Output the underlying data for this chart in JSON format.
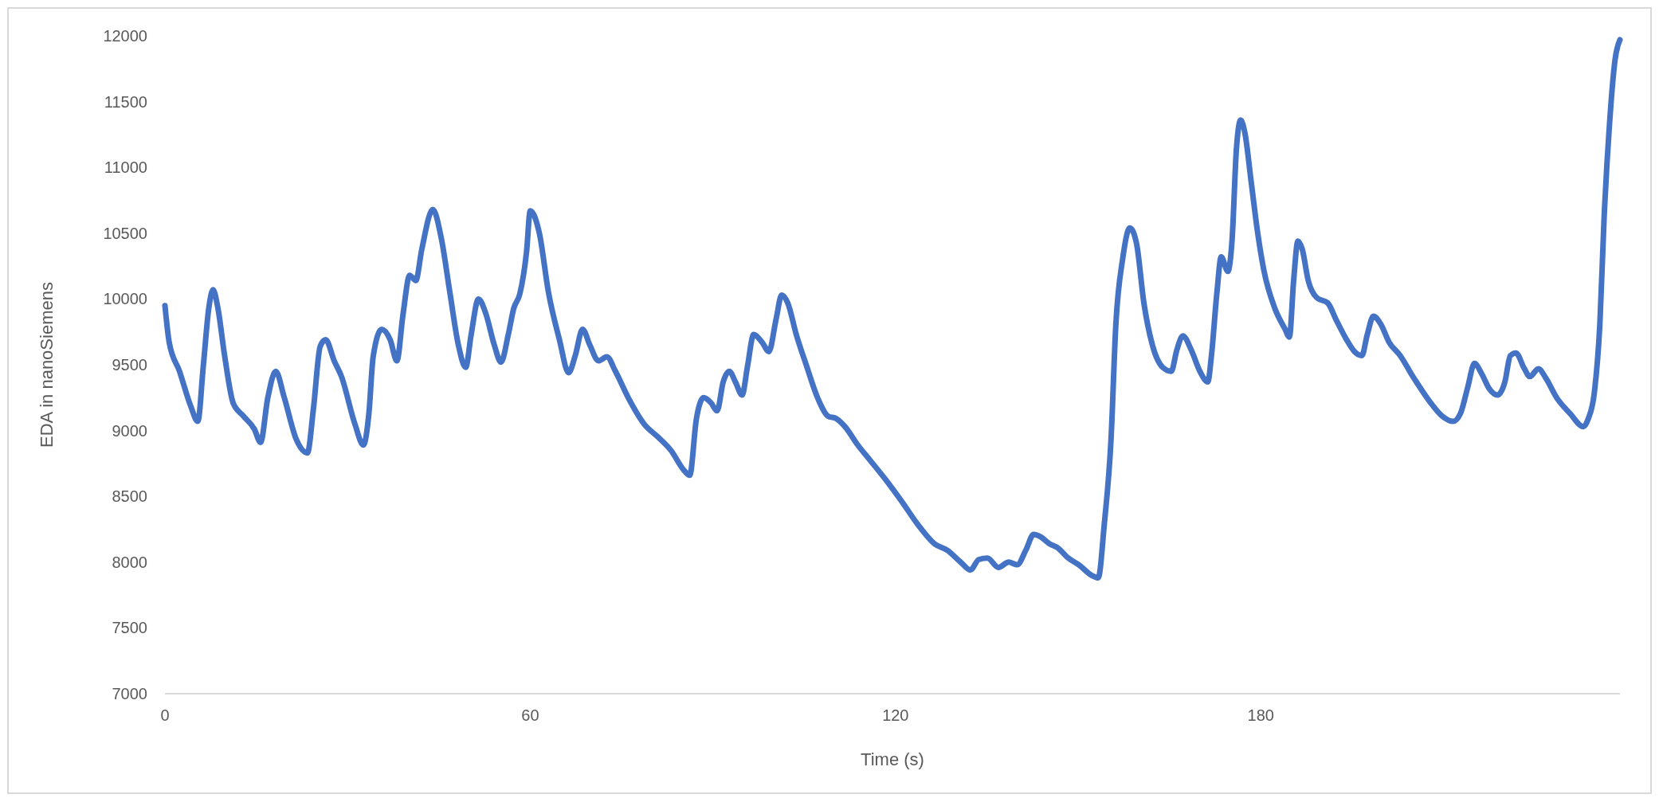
{
  "chart_data": {
    "type": "line",
    "xlabel": "Time (s)",
    "ylabel": "EDA in nanoSiemens",
    "xlim": [
      0,
      239
    ],
    "xticks": [
      0,
      60,
      120,
      180
    ],
    "ylim": [
      7000,
      12000
    ],
    "yticks": [
      7000,
      7500,
      8000,
      8500,
      9000,
      9500,
      10000,
      10500,
      11000,
      11500,
      12000
    ],
    "grid": false,
    "marker": "none",
    "line_style": "solid",
    "series": [
      {
        "color": "#4472c4",
        "x": [
          0,
          0.7,
          2.4,
          4.2,
          5.4,
          6.3,
          7.2,
          7.9,
          8.7,
          9.8,
          11.2,
          12.9,
          14.7,
          15.7,
          16.9,
          18.2,
          19.6,
          21.6,
          23.4,
          24.4,
          25.5,
          26.4,
          27.8,
          29,
          31.2,
          32.6,
          33.5,
          34.2,
          35.6,
          37,
          38.1,
          39.1,
          40.2,
          41.2,
          42.2,
          44,
          45.4,
          46.8,
          48.2,
          49.4,
          50.3,
          51.5,
          52.7,
          54.1,
          55.2,
          56.4,
          57.3,
          58.3,
          59.4,
          60,
          61.5,
          63,
          64.8,
          66.3,
          67.4,
          68.6,
          69.8,
          71.2,
          72.6,
          74,
          76.1,
          78.7,
          81,
          83.1,
          85.4,
          86.2,
          87.3,
          88.5,
          89.7,
          90.7,
          91.7,
          92.7,
          93.7,
          94.8,
          95.7,
          96.7,
          98.1,
          99.2,
          100.4,
          101.3,
          102.3,
          103.7,
          105.4,
          107.2,
          108.9,
          110.3,
          111.7,
          113.8,
          115.9,
          118.5,
          121.2,
          123.6,
          126.4,
          128.5,
          130.7,
          132.3,
          133.7,
          135.1,
          136.9,
          138.6,
          140,
          141.4,
          142.7,
          143.9,
          145.3,
          146.6,
          148.4,
          150.1,
          152.2,
          153.3,
          154.3,
          155.4,
          156.2,
          157.3,
          158.5,
          159.6,
          160.8,
          162.2,
          163.9,
          165.3,
          166.2,
          167.2,
          168.6,
          170,
          171.3,
          171.9,
          172.8,
          173.5,
          174.6,
          175.3,
          176,
          176.7,
          177.4,
          178.4,
          179.5,
          180.5,
          182.3,
          184,
          184.7,
          185.4,
          186.1,
          186.8,
          187.8,
          189.2,
          191,
          192.4,
          194.1,
          195.4,
          196.6,
          197.5,
          198.5,
          199.7,
          201.1,
          202.9,
          205,
          207.6,
          209.8,
          211.6,
          212.8,
          214,
          215.1,
          216.3,
          217.5,
          218.9,
          220.1,
          221,
          221.9,
          223.3,
          224.2,
          225.6,
          226.8,
          228.6,
          230.8,
          233,
          233.8,
          234.8,
          235.7,
          236.4,
          237.3,
          238.2,
          239
        ],
        "values": [
          9950,
          9670,
          9450,
          9190,
          9070,
          9490,
          9930,
          10070,
          9930,
          9570,
          9210,
          9110,
          9010,
          8910,
          9250,
          9450,
          9250,
          8930,
          8830,
          9170,
          9640,
          9690,
          9530,
          9410,
          9050,
          8890,
          9130,
          9560,
          9770,
          9690,
          9530,
          9880,
          10180,
          10140,
          10380,
          10680,
          10460,
          10050,
          9650,
          9480,
          9730,
          10000,
          9890,
          9650,
          9520,
          9730,
          9930,
          10040,
          10360,
          10670,
          10500,
          10050,
          9690,
          9440,
          9570,
          9770,
          9650,
          9530,
          9560,
          9450,
          9250,
          9050,
          8950,
          8850,
          8690,
          8660,
          9090,
          9250,
          9210,
          9150,
          9370,
          9450,
          9370,
          9270,
          9490,
          9730,
          9670,
          9600,
          9850,
          10030,
          9970,
          9730,
          9490,
          9250,
          9110,
          9090,
          9030,
          8890,
          8770,
          8620,
          8450,
          8290,
          8140,
          8090,
          8000,
          7940,
          8020,
          8030,
          7960,
          8000,
          7980,
          8090,
          8210,
          8190,
          8140,
          8110,
          8030,
          7980,
          7900,
          7880,
          8290,
          8930,
          9810,
          10300,
          10540,
          10420,
          9970,
          9650,
          9480,
          9450,
          9610,
          9720,
          9610,
          9450,
          9370,
          9570,
          10050,
          10320,
          10210,
          10460,
          11140,
          11360,
          11260,
          10900,
          10500,
          10220,
          9930,
          9770,
          9710,
          10140,
          10440,
          10380,
          10140,
          10010,
          9970,
          9840,
          9690,
          9600,
          9570,
          9730,
          9870,
          9810,
          9670,
          9570,
          9410,
          9230,
          9110,
          9070,
          9130,
          9330,
          9510,
          9430,
          9320,
          9270,
          9370,
          9570,
          9590,
          9470,
          9410,
          9470,
          9400,
          9250,
          9130,
          9030,
          9090,
          9290,
          9810,
          10620,
          11340,
          11820,
          11970
        ]
      }
    ]
  }
}
